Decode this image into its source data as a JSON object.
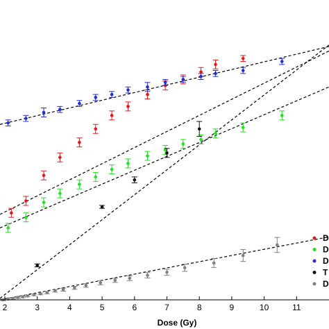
{
  "chart_data": {
    "type": "scatter",
    "title": "",
    "xlabel": "Dose (Gy)",
    "ylabel": "",
    "xlim": [
      1.85,
      12.0
    ],
    "ylim": [
      0,
      100
    ],
    "xticks": [
      2,
      3,
      4,
      5,
      6,
      7,
      8,
      9,
      10,
      11
    ],
    "grid": false,
    "legend_placement": "right",
    "colors": {
      "red": "#e31a1c",
      "green": "#22e022",
      "blue": "#1f2fd0",
      "black": "#111111",
      "gray": "#808080",
      "fit_line": "#000000"
    },
    "series": [
      {
        "legend_label": "D",
        "color": "red",
        "fit": [
          [
            1.85,
            28.5
          ],
          [
            12.0,
            83.0
          ]
        ],
        "points": [
          {
            "x": 2.2,
            "y": 29.0,
            "err": 1.5
          },
          {
            "x": 2.65,
            "y": 33.0,
            "err": 1.5
          },
          {
            "x": 3.2,
            "y": 41.5,
            "err": 1.5
          },
          {
            "x": 3.7,
            "y": 47.5,
            "err": 1.5
          },
          {
            "x": 4.3,
            "y": 52.5,
            "err": 1.5
          },
          {
            "x": 4.8,
            "y": 57.0,
            "err": 1.5
          },
          {
            "x": 5.3,
            "y": 61.5,
            "err": 1.5
          },
          {
            "x": 5.8,
            "y": 64.5,
            "err": 1.5
          },
          {
            "x": 6.4,
            "y": 68.5,
            "err": 1.5
          },
          {
            "x": 6.95,
            "y": 71.5,
            "err": 1.5
          },
          {
            "x": 7.5,
            "y": 73.5,
            "err": 1.5
          },
          {
            "x": 8.05,
            "y": 76.0,
            "err": 1.5
          },
          {
            "x": 8.5,
            "y": 78.5,
            "err": 1.5
          },
          {
            "x": 9.35,
            "y": 80.5,
            "err": 1.0
          }
        ]
      },
      {
        "legend_label": "D",
        "color": "green",
        "fit": [
          [
            1.85,
            24.0
          ],
          [
            12.0,
            71.0
          ]
        ],
        "points": [
          {
            "x": 2.1,
            "y": 24.0,
            "err": 1.5
          },
          {
            "x": 2.65,
            "y": 27.5,
            "err": 1.5
          },
          {
            "x": 3.2,
            "y": 32.5,
            "err": 1.5
          },
          {
            "x": 3.7,
            "y": 35.5,
            "err": 1.5
          },
          {
            "x": 4.3,
            "y": 38.5,
            "err": 1.5
          },
          {
            "x": 4.8,
            "y": 41.0,
            "err": 1.5
          },
          {
            "x": 5.3,
            "y": 43.5,
            "err": 1.5
          },
          {
            "x": 5.8,
            "y": 45.5,
            "err": 1.5
          },
          {
            "x": 6.4,
            "y": 48.0,
            "err": 1.5
          },
          {
            "x": 6.95,
            "y": 50.0,
            "err": 1.5
          },
          {
            "x": 7.5,
            "y": 52.0,
            "err": 1.5
          },
          {
            "x": 8.05,
            "y": 53.5,
            "err": 1.5
          },
          {
            "x": 8.5,
            "y": 55.5,
            "err": 1.5
          },
          {
            "x": 9.35,
            "y": 57.5,
            "err": 1.5
          },
          {
            "x": 10.55,
            "y": 61.5,
            "err": 1.5
          }
        ]
      },
      {
        "legend_label": "D",
        "color": "blue",
        "fit": [
          [
            1.85,
            58.5
          ],
          [
            12.0,
            84.5
          ]
        ],
        "points": [
          {
            "x": 2.1,
            "y": 59.0,
            "err": 1.0
          },
          {
            "x": 2.65,
            "y": 60.5,
            "err": 1.0
          },
          {
            "x": 3.2,
            "y": 62.5,
            "err": 1.5
          },
          {
            "x": 3.7,
            "y": 63.5,
            "err": 1.0
          },
          {
            "x": 4.3,
            "y": 65.5,
            "err": 1.0
          },
          {
            "x": 4.8,
            "y": 67.5,
            "err": 1.0
          },
          {
            "x": 5.3,
            "y": 68.5,
            "err": 1.0
          },
          {
            "x": 5.8,
            "y": 70.0,
            "err": 1.0
          },
          {
            "x": 6.4,
            "y": 71.0,
            "err": 1.5
          },
          {
            "x": 6.95,
            "y": 72.5,
            "err": 1.0
          },
          {
            "x": 7.5,
            "y": 73.5,
            "err": 1.0
          },
          {
            "x": 8.05,
            "y": 74.5,
            "err": 1.0
          },
          {
            "x": 8.5,
            "y": 75.5,
            "err": 1.0
          },
          {
            "x": 9.35,
            "y": 76.5,
            "err": 1.0
          },
          {
            "x": 10.55,
            "y": 79.5,
            "err": 1.0
          }
        ]
      },
      {
        "legend_label": "T",
        "color": "black",
        "fit": [
          [
            1.85,
            0.5
          ],
          [
            12.0,
            85.0
          ]
        ],
        "points": [
          {
            "x": 3.0,
            "y": 11.5,
            "err": 0.5
          },
          {
            "x": 5.0,
            "y": 31.0,
            "err": 0.5
          },
          {
            "x": 6.0,
            "y": 40.0,
            "err": 1.0
          },
          {
            "x": 7.0,
            "y": 49.0,
            "err": 1.5
          },
          {
            "x": 8.0,
            "y": 57.0,
            "err": 2.5
          }
        ]
      },
      {
        "legend_label": "D",
        "color": "gray",
        "fit": [
          [
            1.85,
            0.0
          ],
          [
            12.0,
            21.0
          ]
        ],
        "points": [
          {
            "x": 1.95,
            "y": 0.0,
            "err": 0.3
          },
          {
            "x": 2.1,
            "y": 0.3,
            "err": 0.3
          },
          {
            "x": 2.25,
            "y": 0.5,
            "err": 0.3
          },
          {
            "x": 2.4,
            "y": 0.8,
            "err": 0.3
          },
          {
            "x": 2.55,
            "y": 1.0,
            "err": 0.3
          },
          {
            "x": 2.7,
            "y": 1.3,
            "err": 0.3
          },
          {
            "x": 2.9,
            "y": 1.7,
            "err": 0.3
          },
          {
            "x": 3.1,
            "y": 2.0,
            "err": 0.3
          },
          {
            "x": 3.3,
            "y": 2.4,
            "err": 0.4
          },
          {
            "x": 3.55,
            "y": 3.0,
            "err": 0.4
          },
          {
            "x": 3.8,
            "y": 3.4,
            "err": 0.5
          },
          {
            "x": 4.15,
            "y": 4.0,
            "err": 0.5
          },
          {
            "x": 4.5,
            "y": 4.8,
            "err": 0.6
          },
          {
            "x": 4.95,
            "y": 5.7,
            "err": 0.7
          },
          {
            "x": 5.4,
            "y": 6.5,
            "err": 0.7
          },
          {
            "x": 5.85,
            "y": 7.2,
            "err": 0.8
          },
          {
            "x": 6.4,
            "y": 8.2,
            "err": 0.9
          },
          {
            "x": 7.0,
            "y": 9.2,
            "err": 1.0
          },
          {
            "x": 7.55,
            "y": 10.7,
            "err": 1.2
          },
          {
            "x": 8.45,
            "y": 12.3,
            "err": 1.5
          },
          {
            "x": 9.35,
            "y": 14.8,
            "err": 2.0
          },
          {
            "x": 10.4,
            "y": 18.3,
            "err": 2.5
          }
        ]
      }
    ]
  }
}
